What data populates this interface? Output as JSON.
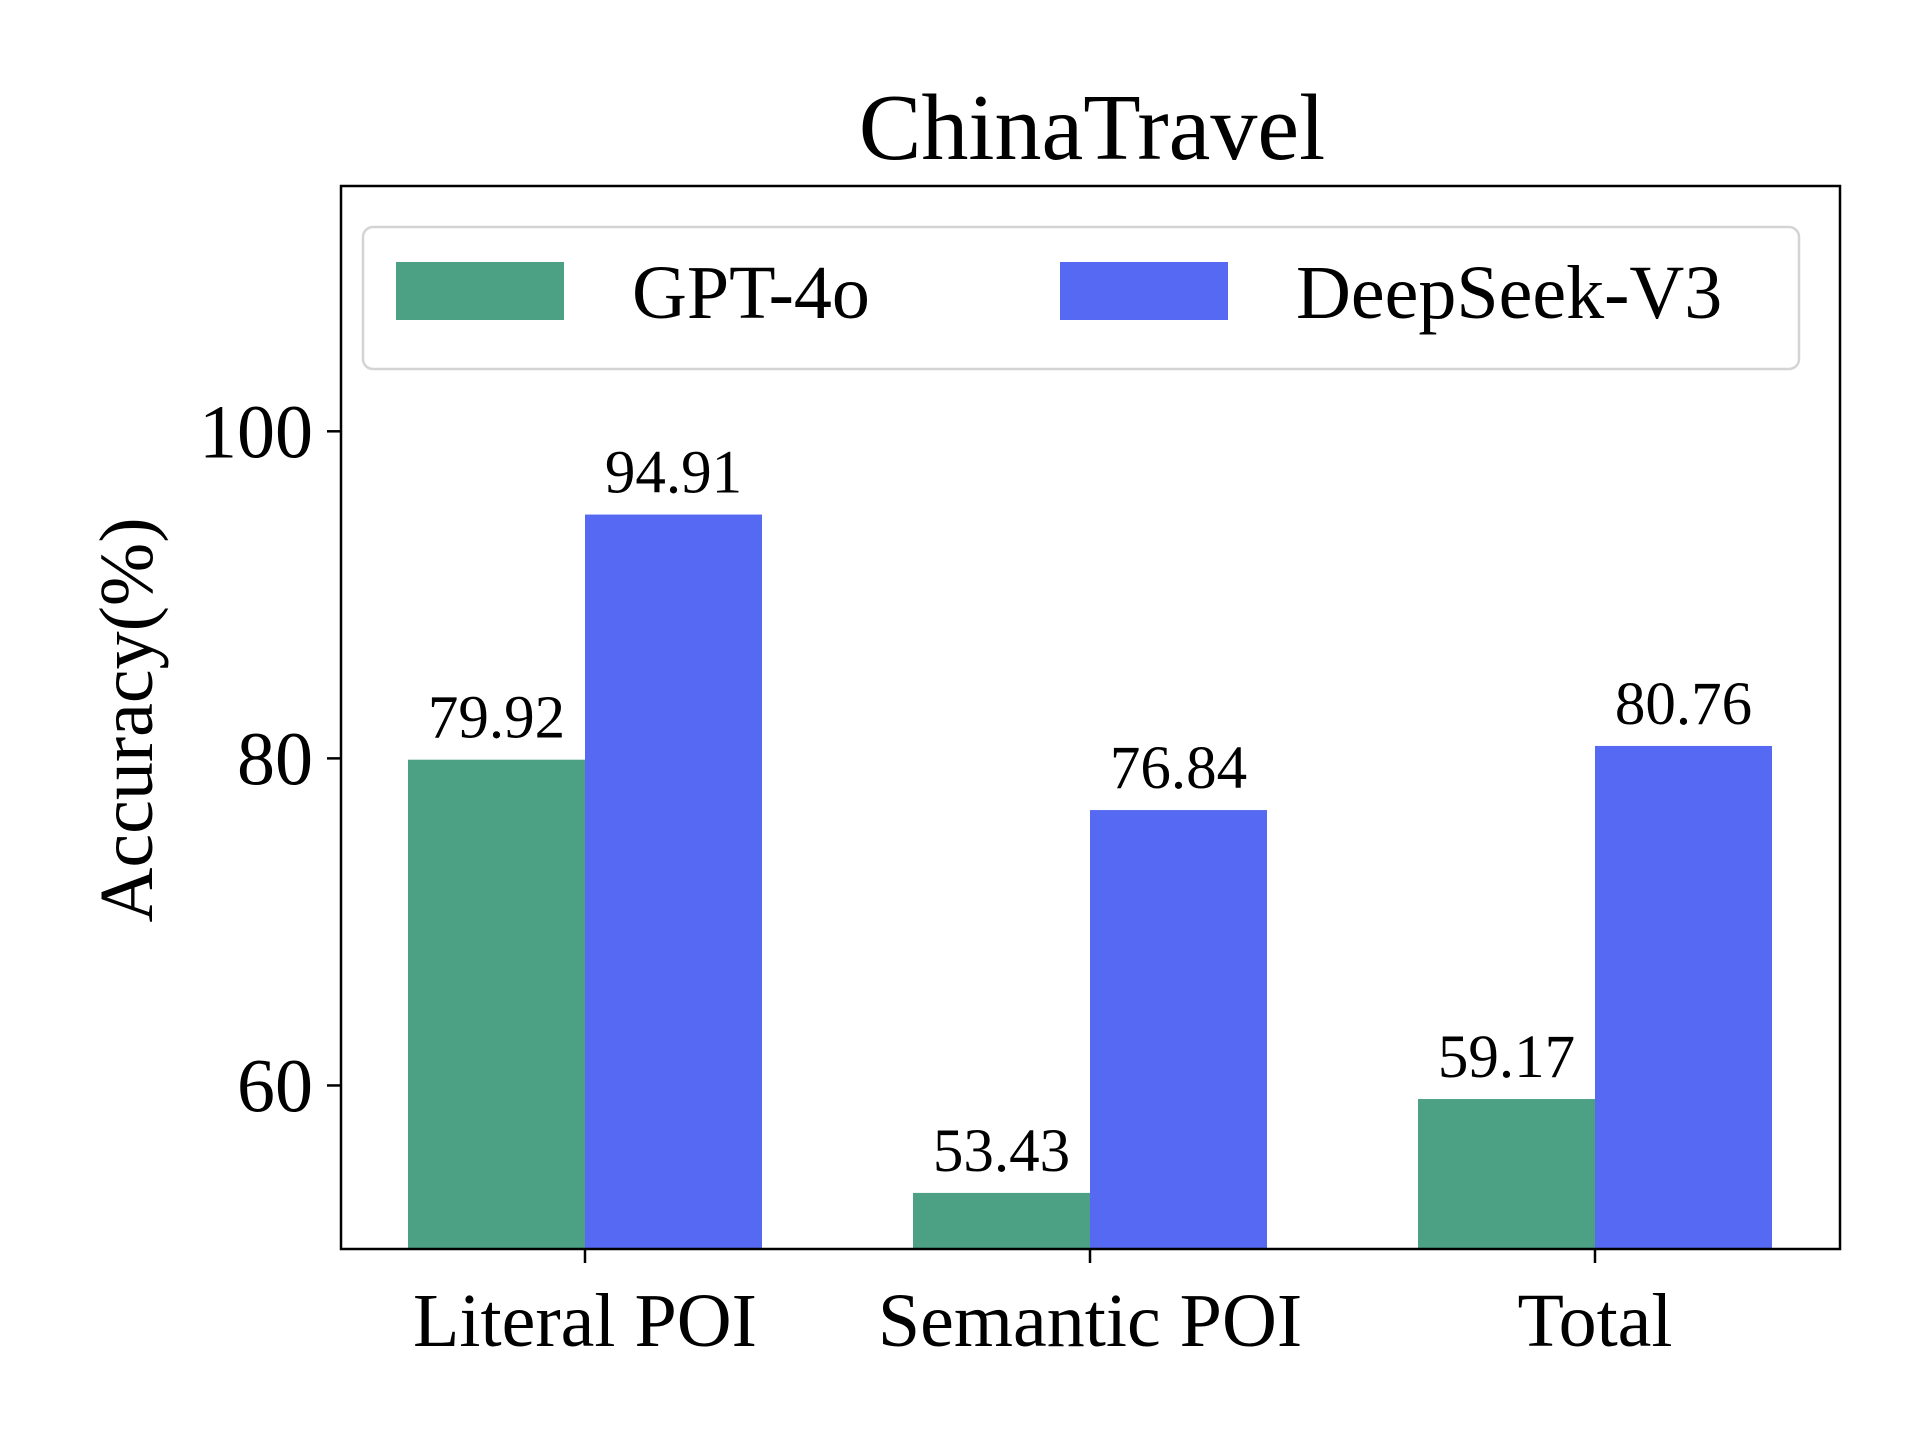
{
  "chart_data": {
    "type": "bar",
    "title": "ChinaTravel",
    "xlabel": "",
    "ylabel": "Accuracy(%)",
    "categories": [
      "Literal POI",
      "Semantic POI",
      "Total"
    ],
    "series": [
      {
        "name": "GPT-4o",
        "color": "#4ca184",
        "values": [
          79.92,
          53.43,
          59.17
        ]
      },
      {
        "name": "DeepSeek-V3",
        "color": "#5569f2",
        "values": [
          94.91,
          76.84,
          80.76
        ]
      }
    ],
    "data_labels": [
      [
        "79.92",
        "53.43",
        "59.17"
      ],
      [
        "94.91",
        "76.84",
        "80.76"
      ]
    ],
    "yticks": [
      60,
      80,
      100
    ],
    "ytick_labels": [
      "60",
      "80",
      "100"
    ],
    "ylim": [
      50,
      115
    ],
    "grid": false,
    "legend_position": "top",
    "legend_columns": 2
  }
}
